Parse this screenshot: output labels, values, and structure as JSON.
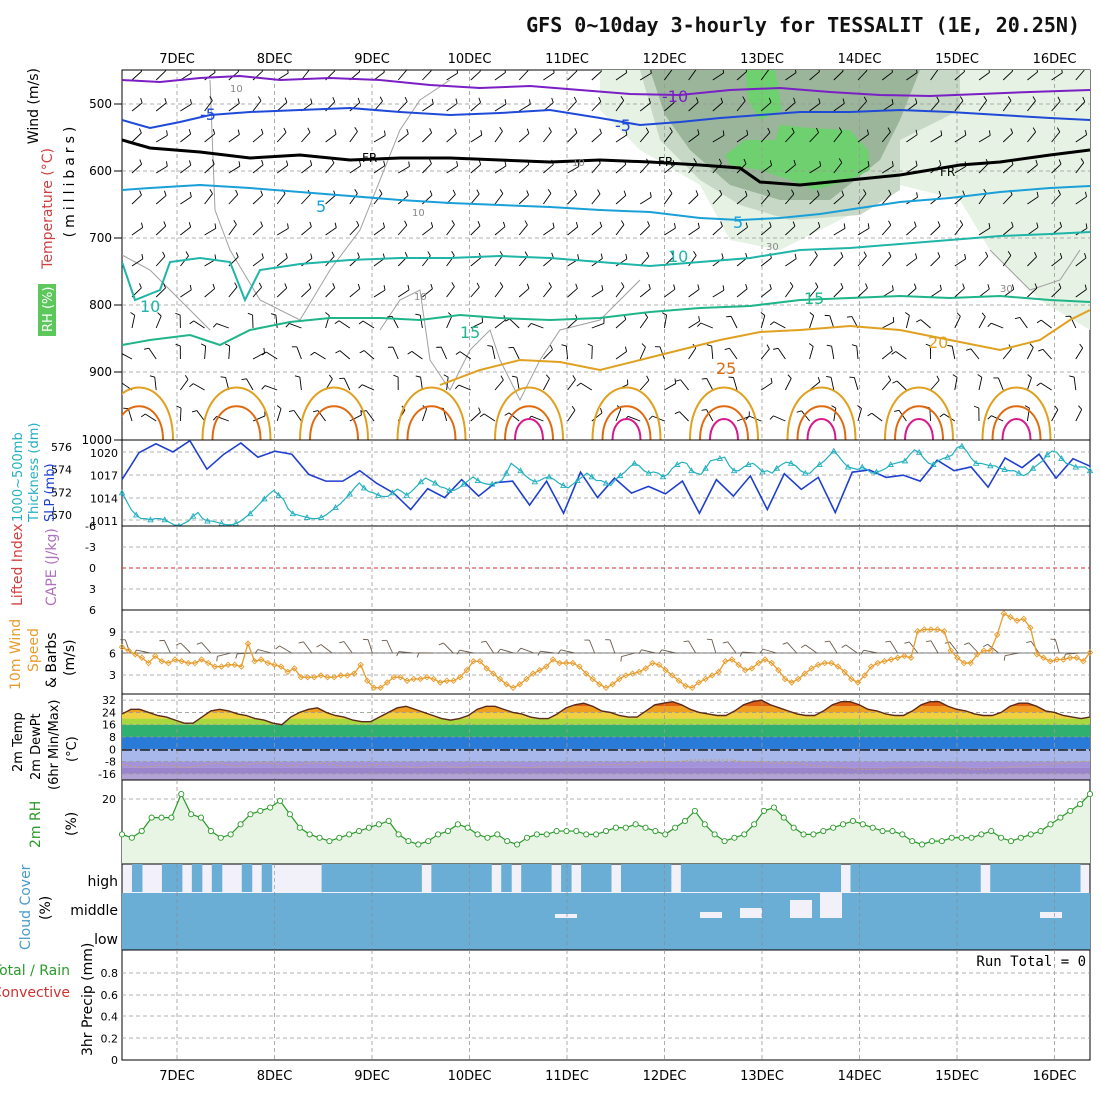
{
  "title": "GFS 0~10day 3-hourly for TESSALIT (1E, 20.25N)",
  "colors": {
    "temp_cold": "#7a1fc4",
    "temp_blue": "#1f4ad8",
    "temp_freeze": "#000000",
    "temp_cyan": "#1aa0d8",
    "temp_teal": "#1fb5a8",
    "temp_green": "#1fb58a",
    "temp_orange": "#e0a020",
    "temp_darkorange": "#e06a10",
    "temp_magenta": "#d81a8a",
    "slp": "#1f3fd0",
    "thickness": "#22b0c0",
    "wind_speed": "#e89c2c",
    "rh2m": "#2a9a2a",
    "cloud": "#6aaed6",
    "cape_zero": "#d03030"
  },
  "axes": {
    "dates": [
      "7DEC",
      "8DEC",
      "9DEC",
      "10DEC",
      "11DEC",
      "12DEC",
      "13DEC",
      "14DEC",
      "15DEC",
      "16DEC"
    ]
  },
  "panels": {
    "upper": {
      "label_wind": "Wind (m/s)",
      "label_temp": "Temperature (°C)",
      "label_rh": "RH (%)",
      "label_unit": "(millibars)",
      "yticks": [
        "500",
        "600",
        "700",
        "800",
        "900",
        "1000"
      ],
      "contour_labels": {
        "m10": "-10",
        "m5": "-5",
        "fr": "FR",
        "p5": "5",
        "p10": "10",
        "p15": "15",
        "p20": "20",
        "p25": "25",
        "rh10": "10",
        "rh30": "30"
      }
    },
    "pressure": {
      "label_thick": "1000~500mb",
      "label_thick2": "Thickness (dm)",
      "label_slp": "SLP (mb)",
      "left_ticks": [
        "576",
        "574",
        "572",
        "570"
      ],
      "right_ticks": [
        "1020",
        "1017",
        "1014",
        "1011"
      ]
    },
    "stability": {
      "label_li": "Lifted Index",
      "label_cape": "CAPE (J/kg)",
      "ticks": [
        "-6",
        "-3",
        "0",
        "3",
        "6"
      ]
    },
    "wind10m": {
      "label1": "10m Wind",
      "label2": "Speed",
      "label3": "& Barbs",
      "label4": "(m/s)",
      "ticks": [
        "9",
        "6",
        "3"
      ]
    },
    "temp2m": {
      "label1": "2m Temp",
      "label2": "2m DewPt",
      "label3": "(6hr Min/Max)",
      "label4": "(°C)",
      "ticks": [
        "32",
        "24",
        "16",
        "8",
        "0",
        "-8",
        "-16"
      ]
    },
    "rh2m": {
      "label1": "2m RH",
      "label2": "(%)",
      "ticks": [
        "20"
      ]
    },
    "cloud": {
      "label1": "Cloud Cover",
      "label2": "(%)",
      "levels": [
        "high",
        "middle",
        "low"
      ]
    },
    "precip": {
      "label1": "Total / Rain",
      "label2": "Convective",
      "label3": "3hr Precip (mm)",
      "ticks": [
        "0.8",
        "0.6",
        "0.4",
        "0.2",
        "0"
      ],
      "run_total": "Run Total = 0"
    }
  },
  "chart_data": [
    {
      "type": "line",
      "name": "slp",
      "ylabel": "SLP (mb)",
      "ylim": [
        1010,
        1021.5
      ],
      "x_step_hours": 6,
      "values": [
        1016.2,
        1019.8,
        1021,
        1019.9,
        1021.4,
        1017.6,
        1019.6,
        1021.1,
        1019.2,
        1020,
        1019.6,
        1016.9,
        1016,
        1016,
        1017.4,
        1015.7,
        1014.4,
        1012.2,
        1015,
        1013.8,
        1016.2,
        1014,
        1015.8,
        1016,
        1012.8,
        1016,
        1011.7,
        1017.2,
        1013.8,
        1016.4,
        1014.4,
        1015.3,
        1014.3,
        1016,
        1011.7,
        1016.2,
        1014,
        1016.7,
        1012.2,
        1017,
        1014.9,
        1016.5,
        1011.8,
        1017.2,
        1017.5,
        1016.5,
        1016.8,
        1016,
        1018.8,
        1017.4,
        1017.9,
        1015.2,
        1019.1,
        1017.8,
        1019.6,
        1016.4,
        1019,
        1018
      ]
    },
    {
      "type": "line",
      "name": "thickness",
      "ylabel": "Thickness (dm)",
      "ylim": [
        569.5,
        576.5
      ],
      "x_step_hours": 3,
      "values": [
        572.2,
        571.5,
        570.8,
        570.4,
        570.1,
        570.1,
        570.0,
        570.1,
        570.1,
        570.0,
        569.8,
        569.6,
        569.5,
        569.7,
        569.9,
        570.3,
        570.6,
        570.1,
        569.9,
        569.9,
        569.8,
        569.7,
        569.6,
        569.6,
        569.7,
        569.9,
        570.2,
        570.5,
        570.9,
        571.3,
        571.7,
        572.1,
        572.4,
        572.0,
        571.7,
        570.9,
        570.5,
        570.4,
        570.3,
        570.2,
        570.1,
        570.1,
        570.2,
        570.4,
        570.7,
        571.0,
        571.3,
        571.7,
        572.1,
        572.6,
        573.0,
        572.6,
        572.3,
        572.2,
        572.0,
        571.9,
        571.9,
        572.2,
        572.5,
        572.3,
        572.0,
        572.3,
        572.7,
        573.1,
        573.4,
        573.2,
        573.0,
        572.7,
        572.6,
        572.4,
        572.4,
        572.6,
        572.9,
        573.2,
        573.5,
        573.2,
        573.0,
        572.9,
        572.9,
        573.0,
        573.2,
        573.8,
        574.6,
        574.3,
        574.0,
        573.6,
        573.3,
        573.1,
        573.2,
        573.4,
        573.5,
        573.3,
        573.0,
        572.8,
        572.6,
        572.9,
        573.2,
        573.5,
        573.8,
        573.5,
        573.2,
        573.2,
        573.0,
        572.8,
        573.3,
        573.6,
        573.9,
        574.3,
        574.6,
        574.4,
        574.0,
        573.8,
        573.9,
        573.8,
        573.5,
        573.7,
        574.2,
        574.5,
        574.7,
        574.6,
        574.0,
        573.8,
        573.7,
        574.2,
        574.8,
        574.9,
        575.0,
        575.1,
        574.4,
        574.0,
        574.0,
        574.3,
        574.5,
        574.6,
        574.3,
        573.9,
        574.0,
        573.8,
        574.2,
        574.5,
        574.7,
        574.6,
        574.4,
        574.0,
        573.8,
        573.8,
        574.2,
        574.5,
        574.8,
        575.2,
        575.6,
        575.2,
        574.7,
        574.3,
        574.2,
        574.1,
        574.3,
        574.1,
        573.8,
        573.9,
        574.0,
        574.2,
        574.5,
        574.6,
        574.7,
        574.8,
        575.3,
        575.7,
        575.5,
        575.0,
        574.6,
        574.5,
        574.8,
        575.0,
        575.1,
        575.3,
        575.9,
        576.0,
        575.6,
        575.0,
        574.6,
        574.6,
        574.5,
        574.4,
        574.4,
        574.2,
        574.1,
        574.0,
        574.0,
        573.8,
        573.6,
        573.8,
        574.2,
        574.5,
        574.8,
        575.3,
        575.6,
        575.5,
        575.0,
        574.6,
        574.5,
        574.3,
        574.3,
        574.3,
        574.0
      ]
    },
    {
      "type": "line",
      "name": "wind_speed_10m",
      "ylabel": "(m/s)",
      "ylim": [
        1.5,
        11
      ],
      "x_step_hours": 3,
      "values": [
        6.8,
        6.4,
        6.0,
        5.6,
        5.0,
        5.8,
        5.2,
        5.0,
        5.4,
        5.2,
        5.0,
        5.0,
        5.4,
        5.0,
        4.6,
        4.6,
        4.8,
        4.8,
        4.6,
        7.2,
        5.2,
        5.4,
        5.0,
        4.8,
        4.6,
        4.0,
        4.4,
        3.4,
        3.4,
        3.4,
        3.6,
        3.4,
        3.4,
        3.6,
        3.6,
        3.8,
        4.8,
        3.0,
        2.2,
        2.2,
        2.8,
        3.4,
        3.4,
        3.0,
        3.2,
        3.2,
        3.4,
        3.2,
        2.8,
        3.0,
        3.0,
        3.4,
        4.2,
        5.2,
        5.2,
        4.4,
        3.8,
        3.2,
        2.6,
        2.2,
        2.6,
        3.2,
        3.8,
        4.2,
        4.6,
        5.4,
        5.0,
        5.0,
        5.0,
        4.6,
        3.8,
        3.2,
        2.6,
        2.2,
        2.6,
        3.2,
        3.6,
        3.8,
        4.0,
        4.4,
        5.0,
        4.8,
        4.2,
        3.6,
        3.0,
        2.4,
        2.2,
        2.8,
        3.2,
        3.6,
        4.0,
        5.2,
        5.4,
        4.8,
        4.2,
        4.4,
        5.0,
        5.4,
        5.0,
        4.2,
        3.2,
        2.8,
        3.2,
        3.8,
        4.4,
        4.8,
        5.0,
        5.0,
        4.6,
        4.0,
        3.2,
        2.8,
        3.6,
        4.6,
        5.0,
        5.2,
        5.4,
        5.6,
        5.8,
        5.6,
        8.6,
        8.8,
        8.8,
        8.8,
        8.6,
        6.4,
        5.6,
        5.0,
        5.0,
        6.0,
        6.4,
        6.4,
        8.2,
        10.6,
        10.2,
        9.8,
        10.0,
        9.0,
        6.0,
        5.6,
        5.2,
        5.4,
        5.4,
        5.6,
        5.6,
        5.2,
        6.2
      ]
    },
    {
      "type": "line",
      "name": "temp_2m",
      "ylabel": "(°C)",
      "ylim": [
        -20,
        36
      ],
      "x_step_hours": 3,
      "values": [
        23,
        26,
        26,
        24,
        22,
        21,
        19,
        17,
        17,
        21,
        25,
        26,
        25,
        23,
        22,
        20,
        19,
        17,
        16,
        21,
        24,
        26,
        27,
        24,
        22,
        21,
        19,
        18,
        18,
        21,
        24,
        27,
        28,
        26,
        24,
        22,
        20,
        19,
        20,
        22,
        26,
        28,
        28,
        26,
        24,
        23,
        21,
        20,
        20,
        23,
        27,
        29,
        30,
        28,
        25,
        24,
        22,
        21,
        21,
        25,
        29,
        30,
        31,
        29,
        26,
        24,
        23,
        22,
        22,
        25,
        29,
        31,
        32,
        29,
        27,
        25,
        23,
        22,
        22,
        25,
        29,
        31,
        31,
        29,
        26,
        25,
        23,
        22,
        22,
        25,
        29,
        31,
        31,
        28,
        26,
        25,
        23,
        22,
        22,
        24,
        28,
        30,
        30,
        28,
        25,
        24,
        22,
        21,
        20,
        21
      ],
      "dewpoint": [
        -10,
        -11,
        -12,
        -11,
        -10,
        -11,
        -12,
        -11,
        -10,
        -9,
        -10,
        -11,
        -10,
        -9,
        -9,
        -10,
        -11,
        -10,
        -9,
        -9,
        -10,
        -11,
        -11,
        -11,
        -10,
        -10,
        -11,
        -11,
        -12,
        -11,
        -10,
        -11,
        -12,
        -11,
        -10,
        -11,
        -11,
        -11,
        -12,
        -12,
        -11,
        -11,
        -11,
        -11,
        -11,
        -10,
        -10,
        -10,
        -10,
        -9,
        -8,
        -8,
        -8,
        -8,
        -7,
        -7,
        -7,
        -7,
        -7,
        -8,
        -8,
        -8,
        -9,
        -9,
        -9,
        -10,
        -11,
        -11,
        -12,
        -12,
        -13,
        -13,
        -13,
        -12,
        -12,
        -12,
        -11,
        -11,
        -12,
        -12,
        -12,
        -13,
        -13,
        -12,
        -12,
        -11,
        -11,
        -10,
        -10,
        -9,
        -9,
        -8,
        -8
      ]
    },
    {
      "type": "line",
      "name": "rh_2m",
      "ylabel": "(%)",
      "ylim": [
        0,
        25
      ],
      "x_step_hours": 6,
      "values": [
        10,
        9,
        11,
        15,
        15,
        15,
        22,
        16,
        15,
        11,
        9,
        10,
        13,
        16,
        17,
        18,
        20,
        16,
        12,
        10,
        9,
        8,
        9,
        10,
        11,
        12,
        13,
        14,
        10,
        8,
        7,
        8,
        10,
        11,
        13,
        12,
        10,
        9,
        10,
        8,
        7,
        9,
        10,
        10,
        11,
        11,
        11,
        10,
        10,
        11,
        12,
        12,
        13,
        12,
        11,
        10,
        12,
        14,
        17,
        13,
        10,
        8,
        9,
        10,
        13,
        17,
        18,
        15,
        12,
        10,
        10,
        11,
        12,
        13,
        14,
        13,
        12,
        11,
        11,
        10,
        8,
        7,
        8,
        8,
        9,
        9,
        9,
        10,
        11,
        9,
        8,
        9,
        10,
        11,
        13,
        15,
        17,
        19,
        22
      ]
    },
    {
      "type": "heatmap",
      "name": "cloud_cover_high",
      "x_step_hours": 6,
      "values": [
        0,
        1,
        0,
        0,
        1,
        1,
        0,
        1,
        0,
        1,
        0,
        0,
        1,
        0,
        1,
        0,
        0,
        0,
        0,
        0,
        1,
        1,
        1,
        1,
        1,
        1,
        1,
        1,
        1,
        1,
        0,
        1,
        1,
        1,
        1,
        1,
        1,
        0,
        1,
        0,
        1,
        1,
        1,
        0,
        1,
        0,
        1,
        1,
        1,
        0,
        1,
        1,
        1,
        1,
        1,
        0,
        1,
        1,
        1,
        1,
        1,
        1,
        1,
        1,
        1,
        1,
        1,
        1,
        1,
        1,
        1,
        1,
        0,
        1,
        1,
        1,
        1,
        1,
        1,
        1,
        1,
        1,
        1,
        1,
        1,
        1,
        0,
        1,
        1,
        1,
        1,
        1,
        1,
        1,
        1,
        1,
        0
      ]
    },
    {
      "type": "bar",
      "name": "precip_3hr",
      "ylabel": "3hr Precip (mm)",
      "ylim": [
        0,
        1
      ],
      "values": [
        0,
        0,
        0,
        0,
        0,
        0,
        0,
        0,
        0,
        0
      ]
    }
  ]
}
